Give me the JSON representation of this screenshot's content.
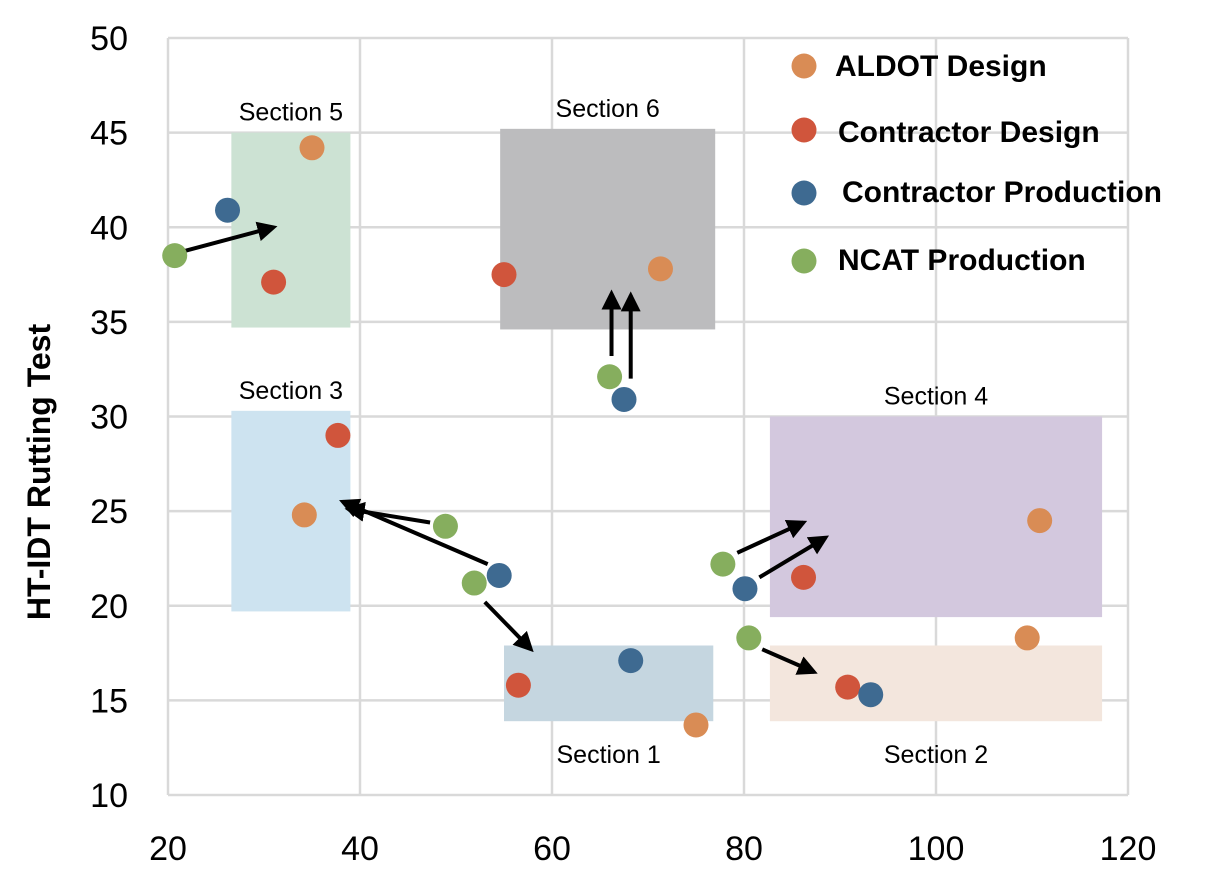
{
  "chart_data": {
    "type": "scatter",
    "title": "",
    "xlabel": "",
    "ylabel": "HT-IDT Rutting Test",
    "xlim": [
      20,
      120
    ],
    "ylim": [
      10,
      50
    ],
    "x_ticks": [
      20,
      40,
      60,
      80,
      100,
      120
    ],
    "y_ticks": [
      10,
      15,
      20,
      25,
      30,
      35,
      40,
      45,
      50
    ],
    "grid": true,
    "legend_position": "top-right",
    "series": [
      {
        "name": "ALDOT Design",
        "color": "#D98C55",
        "points": [
          [
            75,
            13.7
          ],
          [
            109.5,
            18.3
          ],
          [
            34.2,
            24.8
          ],
          [
            110.8,
            24.5
          ],
          [
            35,
            44.2
          ],
          [
            71.3,
            37.8
          ]
        ]
      },
      {
        "name": "Contractor Design",
        "color": "#D0553C",
        "points": [
          [
            56.5,
            15.8
          ],
          [
            90.8,
            15.7
          ],
          [
            37.7,
            29
          ],
          [
            86.2,
            21.5
          ],
          [
            31,
            37.1
          ],
          [
            55,
            37.5
          ]
        ]
      },
      {
        "name": "Contractor Production",
        "color": "#3E6A91",
        "points": [
          [
            68.2,
            17.1
          ],
          [
            93.2,
            15.3
          ],
          [
            54.5,
            21.6
          ],
          [
            80.1,
            20.9
          ],
          [
            26.2,
            40.9
          ],
          [
            67.5,
            30.9
          ]
        ]
      },
      {
        "name": "NCAT Production",
        "color": "#86AE5E",
        "points": [
          [
            51.9,
            21.2
          ],
          [
            80.5,
            18.3
          ],
          [
            48.9,
            24.2
          ],
          [
            77.8,
            22.2
          ],
          [
            20.7,
            38.5
          ],
          [
            66,
            32.1
          ]
        ]
      }
    ],
    "sections": [
      {
        "label": "Section 1",
        "color": "#C5D6E0",
        "x": [
          55,
          76.8
        ],
        "y": [
          13.9,
          17.9
        ]
      },
      {
        "label": "Section 2",
        "color": "#F3E6DD",
        "x": [
          82.7,
          117.3
        ],
        "y": [
          13.9,
          17.9
        ]
      },
      {
        "label": "Section 3",
        "color": "#CDE3F0",
        "x": [
          26.6,
          39
        ],
        "y": [
          19.7,
          30.3
        ]
      },
      {
        "label": "Section 4",
        "color": "#D3C8DE",
        "x": [
          82.7,
          117.3
        ],
        "y": [
          19.4,
          30
        ]
      },
      {
        "label": "Section 5",
        "color": "#CCE2D3",
        "x": [
          26.6,
          39
        ],
        "y": [
          34.7,
          45
        ]
      },
      {
        "label": "Section 6",
        "color": "#BCBCBE",
        "x": [
          54.6,
          77
        ],
        "y": [
          34.6,
          45.2
        ]
      }
    ],
    "arrows": [
      {
        "from": [
          21.4,
          38.7
        ],
        "to": [
          31,
          40
        ]
      },
      {
        "from": [
          66.2,
          33.2
        ],
        "to": [
          66.2,
          36.5
        ]
      },
      {
        "from": [
          68.2,
          32
        ],
        "to": [
          68.2,
          36.4
        ]
      },
      {
        "from": [
          47.3,
          24.4
        ],
        "to": [
          38.8,
          25.1
        ]
      },
      {
        "from": [
          53.3,
          22.2
        ],
        "to": [
          38.2,
          25.5
        ]
      },
      {
        "from": [
          53,
          20.2
        ],
        "to": [
          57.8,
          17.7
        ]
      },
      {
        "from": [
          79.3,
          22.8
        ],
        "to": [
          86.2,
          24.4
        ]
      },
      {
        "from": [
          81.6,
          21.5
        ],
        "to": [
          88.5,
          23.6
        ]
      },
      {
        "from": [
          81.9,
          17.7
        ],
        "to": [
          87.3,
          16.5
        ]
      }
    ]
  }
}
